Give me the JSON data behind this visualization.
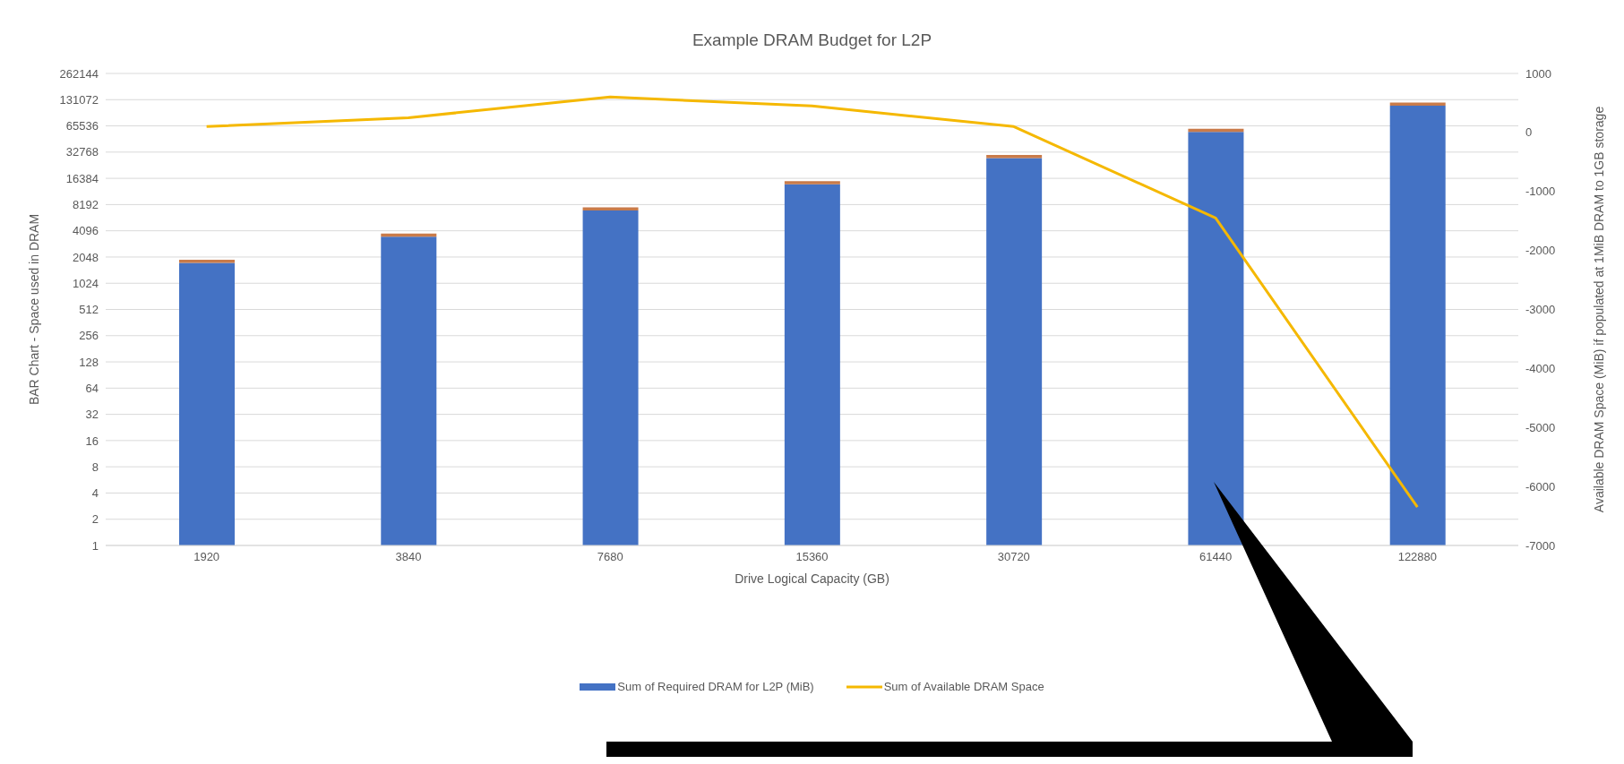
{
  "chart_data": {
    "type": "bar",
    "title": "Example DRAM Budget for L2P",
    "xlabel": "Drive Logical Capacity (GB)",
    "ylabel": "BAR Chart - Space used in DRAM",
    "y2label": "Available DRAM Space (MiB) if populated at 1MiB DRAM to 1GB storage",
    "categories": [
      "1920",
      "3840",
      "7680",
      "15360",
      "30720",
      "61440",
      "122880"
    ],
    "stacked": true,
    "log": "y",
    "grid": "y",
    "legend": "bottom",
    "ylim": [
      1,
      262144
    ],
    "yticks": [
      1,
      2,
      4,
      8,
      16,
      32,
      64,
      128,
      256,
      512,
      1024,
      2048,
      4096,
      8192,
      16384,
      32768,
      65536,
      131072,
      262144
    ],
    "y2lim": [
      -7000,
      1000
    ],
    "y2ticks": [
      -7000,
      -6000,
      -5000,
      -4000,
      -3000,
      -2000,
      -1000,
      0,
      1000
    ],
    "series": [
      {
        "name": "Sum of Required DRAM for L2P (MiB)",
        "color": "#4472c4",
        "values": [
          1750,
          3500,
          7000,
          14000,
          28000,
          56000,
          112000
        ]
      },
      {
        "color": "#c97b4a",
        "values": [
          150,
          300,
          600,
          1200,
          2400,
          4800,
          9600
        ]
      },
      {
        "name": "Sum of Available DRAM Space",
        "type": "line",
        "axis": "y2",
        "color": "#f5b800",
        "values": [
          100,
          250,
          600,
          450,
          100,
          -1450,
          -6350
        ]
      }
    ]
  }
}
